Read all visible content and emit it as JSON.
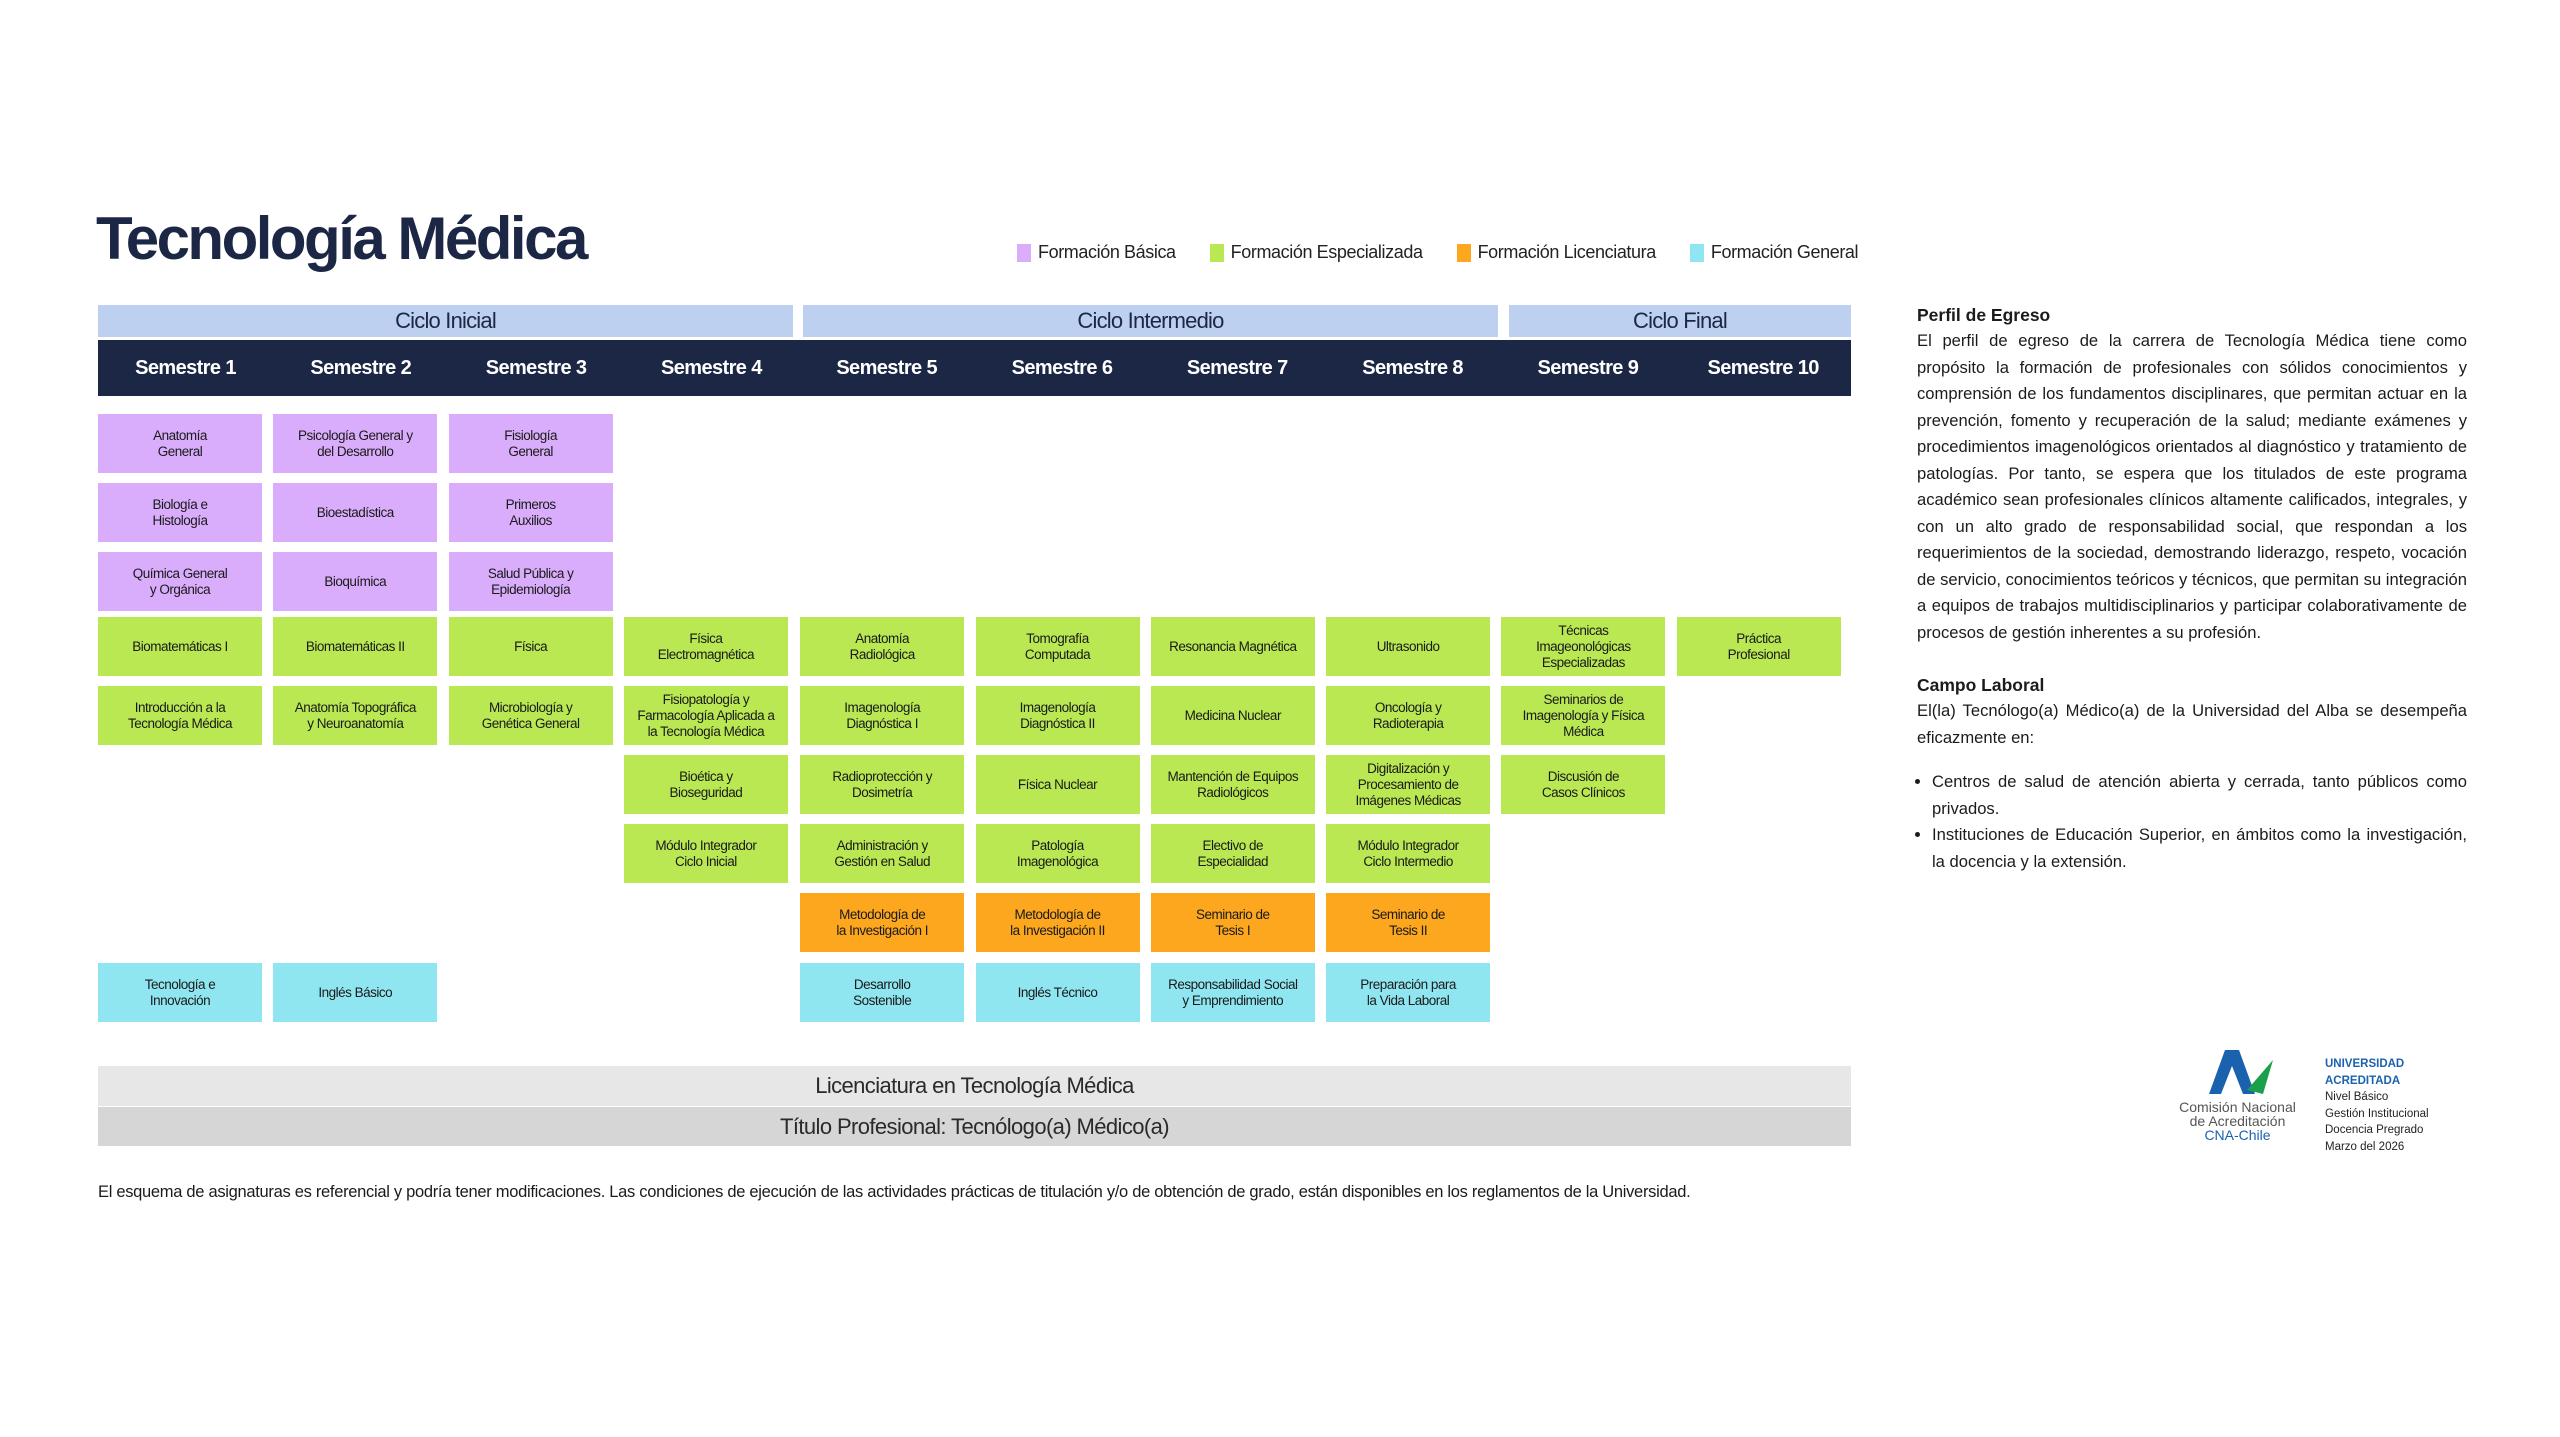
{
  "title": "Tecnología Médica",
  "colors": {
    "basica": "#d9adfb",
    "especializada": "#b9e853",
    "licenciatura": "#fda71f",
    "general": "#8fe6f1",
    "ciclo": "#bdd0ef",
    "semestre": "#1b2744"
  },
  "legend": [
    {
      "label": "Formación Básica",
      "type": "basica"
    },
    {
      "label": "Formación Especializada",
      "type": "especializada"
    },
    {
      "label": "Formación Licenciatura",
      "type": "licenciatura"
    },
    {
      "label": "Formación General",
      "type": "general"
    }
  ],
  "ciclos": [
    "Ciclo Inicial",
    "Ciclo Intermedio",
    "Ciclo Final"
  ],
  "semestres": [
    "Semestre 1",
    "Semestre 2",
    "Semestre 3",
    "Semestre 4",
    "Semestre 5",
    "Semestre 6",
    "Semestre 7",
    "Semestre 8",
    "Semestre 9",
    "Semestre 10"
  ],
  "grid": [
    [
      [
        "Anatomía\nGeneral",
        "basica"
      ],
      [
        "Psicología General y\ndel Desarrollo",
        "basica"
      ],
      [
        "Fisiología\nGeneral",
        "basica"
      ],
      null,
      null,
      null,
      null,
      null,
      null,
      null
    ],
    [
      [
        "Biología e\nHistología",
        "basica"
      ],
      [
        "Bioestadística",
        "basica"
      ],
      [
        "Primeros\nAuxilios",
        "basica"
      ],
      null,
      null,
      null,
      null,
      null,
      null,
      null
    ],
    [
      [
        "Química General\ny Orgánica",
        "basica"
      ],
      [
        "Bioquímica",
        "basica"
      ],
      [
        "Salud Pública y\nEpidemiología",
        "basica"
      ],
      null,
      null,
      null,
      null,
      null,
      null,
      null
    ],
    [
      [
        "Biomatemáticas I",
        "especializada"
      ],
      [
        "Biomatemáticas II",
        "especializada"
      ],
      [
        "Física",
        "especializada"
      ],
      [
        "Física\nElectromagnética",
        "especializada"
      ],
      [
        "Anatomía\nRadiológica",
        "especializada"
      ],
      [
        "Tomografía\nComputada",
        "especializada"
      ],
      [
        "Resonancia Magnética",
        "especializada"
      ],
      [
        "Ultrasonido",
        "especializada"
      ],
      [
        "Técnicas\nImageonológicas\nEspecializadas",
        "especializada"
      ],
      [
        "Práctica\nProfesional",
        "especializada"
      ]
    ],
    [
      [
        "Introducción a la\nTecnología Médica",
        "especializada"
      ],
      [
        "Anatomía Topográfica\ny Neuroanatomía",
        "especializada"
      ],
      [
        "Microbiología y\nGenética General",
        "especializada"
      ],
      [
        "Fisiopatología y\nFarmacología Aplicada a\nla Tecnología Médica",
        "especializada"
      ],
      [
        "Imagenología\nDiagnóstica I",
        "especializada"
      ],
      [
        "Imagenología\nDiagnóstica II",
        "especializada"
      ],
      [
        "Medicina Nuclear",
        "especializada"
      ],
      [
        "Oncología y\nRadioterapia",
        "especializada"
      ],
      [
        "Seminarios de\nImagenología y Física\nMédica",
        "especializada"
      ],
      null
    ],
    [
      null,
      null,
      null,
      [
        "Bioética y\nBioseguridad",
        "especializada"
      ],
      [
        "Radioprotección y\nDosimetría",
        "especializada"
      ],
      [
        "Física Nuclear",
        "especializada"
      ],
      [
        "Mantención de Equipos\nRadiológicos",
        "especializada"
      ],
      [
        "Digitalización y\nProcesamiento de\nImágenes Médicas",
        "especializada"
      ],
      [
        "Discusión de\nCasos Clínicos",
        "especializada"
      ],
      null
    ],
    [
      null,
      null,
      null,
      [
        "Módulo Integrador\nCiclo Inicial",
        "especializada"
      ],
      [
        "Administración y\nGestión en Salud",
        "especializada"
      ],
      [
        "Patología\nImagenológica",
        "especializada"
      ],
      [
        "Electivo de\nEspecialidad",
        "especializada"
      ],
      [
        "Módulo Integrador\nCiclo Intermedio",
        "especializada"
      ],
      null,
      null
    ],
    [
      null,
      null,
      null,
      null,
      [
        "Metodología de\nla Investigación I",
        "licenciatura"
      ],
      [
        "Metodología de\nla Investigación II",
        "licenciatura"
      ],
      [
        "Seminario de\nTesis I",
        "licenciatura"
      ],
      [
        "Seminario de\nTesis II",
        "licenciatura"
      ],
      null,
      null
    ],
    [
      [
        "Tecnología e\nInnovación",
        "general"
      ],
      [
        "Inglés Básico",
        "general"
      ],
      null,
      null,
      [
        "Desarrollo\nSostenible",
        "general"
      ],
      [
        "Inglés Técnico",
        "general"
      ],
      [
        "Responsabilidad Social\ny Emprendimiento",
        "general"
      ],
      [
        "Preparación para\nla Vida Laboral",
        "general"
      ],
      null,
      null
    ]
  ],
  "licenciatura": "Licenciatura en Tecnología Médica",
  "titulo_profesional": "Título Profesional: Tecnólogo(a) Médico(a)",
  "footnote": "El esquema de asignaturas es referencial y podría tener modificaciones. Las condiciones de ejecución de las actividades prácticas de titulación y/o de obtención de grado, están disponibles en los reglamentos de la Universidad.",
  "perfil": {
    "heading": "Perfil de Egreso",
    "text": "El perfil de egreso de la carrera de Tecnología Médica tiene como propósito la formación de profesionales con sólidos conocimientos y comprensión de los fundamentos disciplinares, que permitan actuar en la prevención, fomento y recuperación de la salud; mediante exámenes y procedimientos imagenológicos orientados al diagnóstico y tratamiento de patologías. Por tanto, se espera que los titulados de este programa académico sean profesionales clínicos altamente calificados, integrales, y con un alto grado de responsabilidad social, que respondan a los requerimientos de la sociedad, demostrando liderazgo, respeto, vocación de servicio, conocimientos teóricos y técnicos, que permitan su integración a equipos de trabajos multidisciplinarios y participar colaborativamente de procesos de gestión inherentes a su profesión."
  },
  "campo": {
    "heading": "Campo Laboral",
    "text": "El(la) Tecnólogo(a) Médico(a) de la Universidad del Alba se desempeña eficazmente en:",
    "items": [
      "Centros de salud de atención abierta y cerrada, tanto públicos como privados.",
      "Instituciones de Educación Superior, en ámbitos como la investigación, la docencia y la extensión."
    ]
  },
  "acreditacion": {
    "logo_line1": "Comisión Nacional",
    "logo_line2": "de Acreditación",
    "logo_line3": "CNA-Chile",
    "heading": "UNIVERSIDAD ACREDITADA",
    "lines": [
      "Nivel Básico",
      "Gestión Institucional",
      "Docencia Pregrado",
      "Marzo del 2026"
    ]
  }
}
